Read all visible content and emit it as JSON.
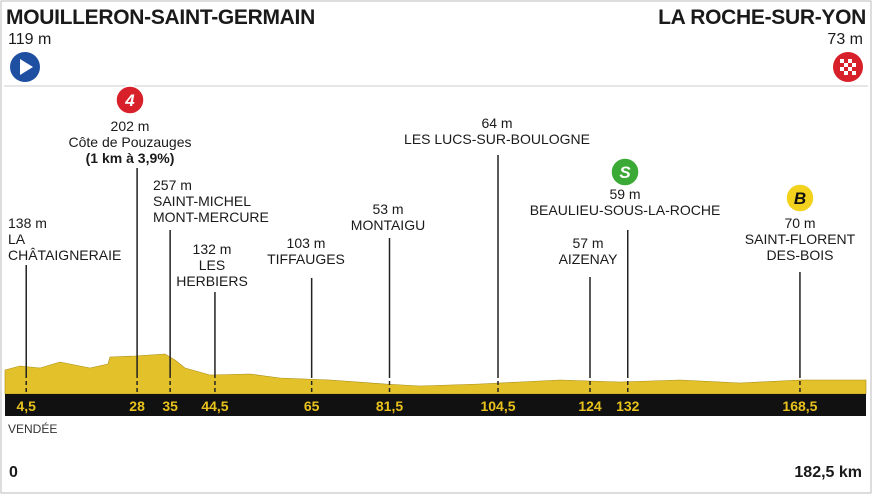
{
  "start": {
    "name": "MOUILLERON-SAINT-GERMAIN",
    "altitude": "119 m"
  },
  "finish": {
    "name": "LA ROCHE-SUR-YON",
    "altitude": "73 m"
  },
  "region": "VENDÉE",
  "distance": {
    "start": 0,
    "total": {
      "value": 182.5,
      "label": "182,5 km"
    }
  },
  "waypoints": [
    {
      "km": {
        "value": 4.5,
        "label": "4,5"
      },
      "altitude": "138 m",
      "name": [
        "LA",
        "CHÂTAIGNERAIE"
      ]
    },
    {
      "km": 28,
      "altitude": "202 m",
      "name": [
        "Côte de Pouzauges"
      ],
      "detail": "(1 km à 3,9%)",
      "badge": "4"
    },
    {
      "km": 35,
      "altitude": "257 m",
      "name": [
        "SAINT-MICHEL",
        "MONT-MERCURE"
      ]
    },
    {
      "km": {
        "value": 44.5,
        "label": "44,5"
      },
      "altitude": "132 m",
      "name": [
        "LES",
        "HERBIERS"
      ]
    },
    {
      "km": 65,
      "altitude": "103 m",
      "name": [
        "TIFFAUGES"
      ]
    },
    {
      "km": {
        "value": 81.5,
        "label": "81,5"
      },
      "altitude": "53 m",
      "name": [
        "MONTAIGU"
      ]
    },
    {
      "km": {
        "value": 104.5,
        "label": "104,5"
      },
      "altitude": "64 m",
      "name": [
        "LES LUCS-SUR-BOULOGNE"
      ]
    },
    {
      "km": 124,
      "altitude": "57 m",
      "name": [
        "AIZENAY"
      ]
    },
    {
      "km": 132,
      "altitude": "59 m",
      "name": [
        "BEAULIEU-SOUS-LA-ROCHE"
      ],
      "badge": "S"
    },
    {
      "km": {
        "value": 168.5,
        "label": "168,5"
      },
      "altitude": "70 m",
      "name": [
        "SAINT-FLORENT",
        "DES-BOIS"
      ],
      "badge": "B"
    }
  ]
}
